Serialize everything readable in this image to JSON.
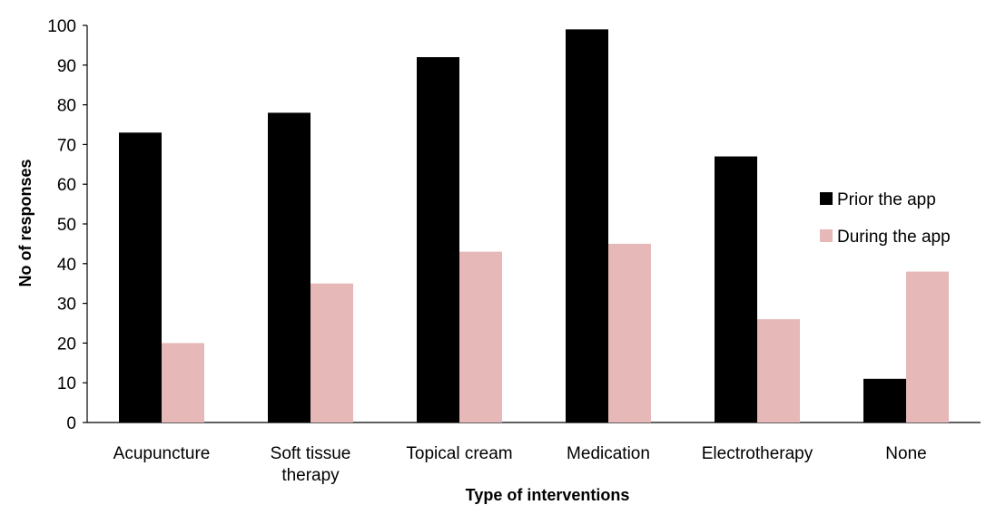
{
  "chart_data": {
    "type": "bar",
    "title": "",
    "xlabel": "Type of interventions",
    "ylabel": "No  of responses",
    "ylim": [
      0,
      100
    ],
    "yticks": [
      0,
      10,
      20,
      30,
      40,
      50,
      60,
      70,
      80,
      90,
      100
    ],
    "categories": [
      [
        "Acupuncture"
      ],
      [
        "Soft tissue",
        "therapy"
      ],
      [
        "Topical cream"
      ],
      [
        "Medication"
      ],
      [
        "Electrotherapy"
      ],
      [
        "None"
      ]
    ],
    "series": [
      {
        "name": "Prior the app",
        "color": "#000000",
        "values": [
          73,
          78,
          92,
          99,
          67,
          11
        ]
      },
      {
        "name": "During the app",
        "color": "#e6b8b7",
        "values": [
          20,
          35,
          43,
          45,
          26,
          38
        ]
      }
    ],
    "legend_position": "right",
    "grid": false
  }
}
